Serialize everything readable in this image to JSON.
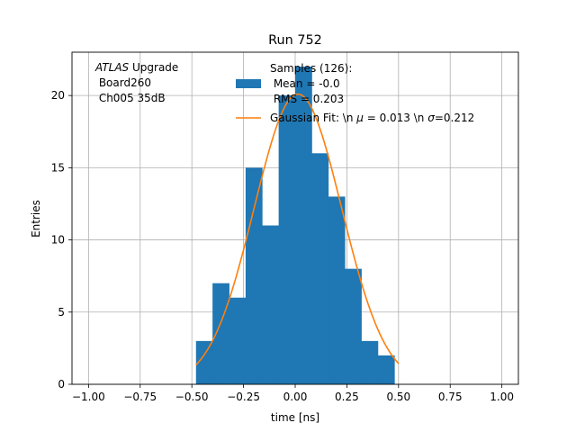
{
  "chart_data": {
    "type": "bar",
    "title": "Run 752",
    "xlabel": "time [ns]",
    "ylabel": "Entries",
    "xlim": [
      -1.08,
      1.08
    ],
    "ylim": [
      0,
      23
    ],
    "grid": true,
    "xticks": [
      "−1.00",
      "−0.75",
      "−0.50",
      "−0.25",
      "0.00",
      "0.25",
      "0.50",
      "0.75",
      "1.00"
    ],
    "xtick_values": [
      -1.0,
      -0.75,
      -0.5,
      -0.25,
      0.0,
      0.25,
      0.5,
      0.75,
      1.0
    ],
    "yticks": [
      "0",
      "5",
      "10",
      "15",
      "20"
    ],
    "ytick_values": [
      0,
      5,
      10,
      15,
      20
    ],
    "bin_edges": [
      -0.48,
      -0.4,
      -0.32,
      -0.24,
      -0.16,
      -0.08,
      0.0,
      0.08,
      0.16,
      0.24,
      0.32,
      0.4,
      0.48
    ],
    "bar_color": "#1f77b4",
    "series": [
      {
        "kind": "histogram",
        "values": [
          3,
          7,
          6,
          15,
          11,
          20,
          22,
          16,
          13,
          8,
          3,
          2
        ]
      },
      {
        "kind": "gaussian-fit",
        "color": "#ff7f0e",
        "amplitude": 20.1,
        "mu": 0.013,
        "sigma": 0.212,
        "x_range": [
          -0.48,
          0.5
        ]
      }
    ],
    "annotation": {
      "line1_italic": "ATLAS",
      "line1_rest": " Upgrade",
      "line2": " Board260",
      "line3": " Ch005 35dB"
    },
    "legend": {
      "placement": "top-right",
      "hist_lines": [
        "Samples (126):",
        " Mean = -0.0",
        " RMS = 0.203"
      ],
      "fit_label_prefix": "Gaussian Fit: \\n ",
      "fit_mu_symbol": "μ",
      "fit_mu_text": " = 0.013 \\n ",
      "fit_sigma_symbol": "σ",
      "fit_sigma_text": "=0.212"
    }
  }
}
